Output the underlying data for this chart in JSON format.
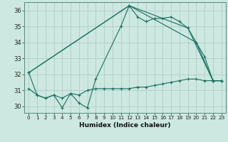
{
  "title": "",
  "xlabel": "Humidex (Indice chaleur)",
  "bg_color": "#cce8e0",
  "grid_color": "#b0ccc4",
  "line_color": "#1a6e5e",
  "ylim": [
    29.6,
    36.5
  ],
  "xlim": [
    -0.5,
    23.5
  ],
  "yticks": [
    30,
    31,
    32,
    33,
    34,
    35,
    36
  ],
  "xticks": [
    0,
    1,
    2,
    3,
    4,
    5,
    6,
    7,
    8,
    9,
    10,
    11,
    12,
    13,
    14,
    15,
    16,
    17,
    18,
    19,
    20,
    21,
    22,
    23
  ],
  "series": [
    {
      "x": [
        0,
        1,
        2,
        3,
        4,
        5,
        6,
        7,
        8,
        11,
        12,
        13,
        14,
        15,
        16,
        17,
        18,
        19,
        20,
        21,
        22,
        23
      ],
      "y": [
        32.1,
        30.7,
        30.5,
        30.7,
        29.9,
        30.8,
        30.2,
        29.9,
        31.7,
        35.0,
        36.3,
        35.6,
        35.3,
        35.5,
        35.5,
        35.6,
        35.3,
        34.9,
        34.0,
        33.1,
        31.6,
        31.6
      ]
    },
    {
      "x": [
        0,
        1,
        2,
        3,
        4,
        5,
        6,
        7,
        8,
        9,
        10,
        11,
        12,
        13,
        14,
        15,
        16,
        17,
        18,
        19,
        20,
        21,
        22,
        23
      ],
      "y": [
        31.1,
        30.7,
        30.5,
        30.7,
        30.5,
        30.8,
        30.7,
        31.0,
        31.1,
        31.1,
        31.1,
        31.1,
        31.1,
        31.2,
        31.2,
        31.3,
        31.4,
        31.5,
        31.6,
        31.7,
        31.7,
        31.6,
        31.6,
        31.6
      ]
    },
    {
      "x": [
        0,
        12,
        19,
        22,
        23
      ],
      "y": [
        32.1,
        36.3,
        34.9,
        31.6,
        31.6
      ]
    },
    {
      "x": [
        0,
        12,
        20,
        22,
        23
      ],
      "y": [
        32.1,
        36.3,
        34.0,
        31.6,
        31.6
      ]
    }
  ]
}
